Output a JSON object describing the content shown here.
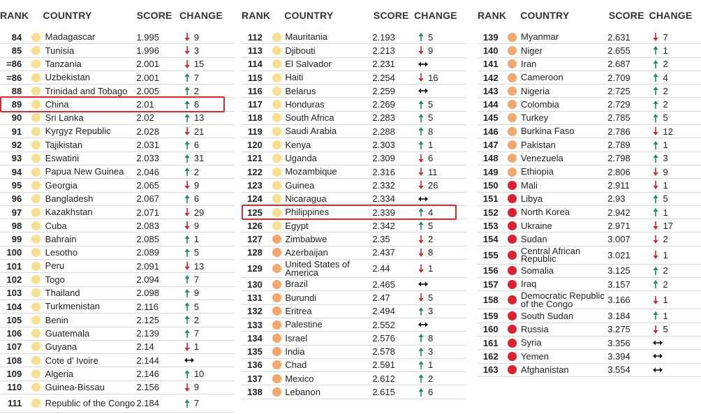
{
  "columns": [
    {
      "header": {
        "rank": "RANK",
        "country": "COUNTRY",
        "score": "SCORE",
        "change": "CHANGE"
      },
      "rows": [
        {
          "rank": "84",
          "country": "Madagascar",
          "score": "1.995",
          "change": 9,
          "dir": "down",
          "dot": "#f8df8e"
        },
        {
          "rank": "85",
          "country": "Tunisia",
          "score": "1.996",
          "change": 3,
          "dir": "down",
          "dot": "#f8df8e"
        },
        {
          "rank": "=86",
          "country": "Tanzania",
          "score": "2.001",
          "change": 15,
          "dir": "down",
          "dot": "#f8df8e"
        },
        {
          "rank": "=86",
          "country": "Uzbekistan",
          "score": "2.001",
          "change": 7,
          "dir": "up",
          "dot": "#f8df8e"
        },
        {
          "rank": "88",
          "country": "Trinidad and Tobago",
          "score": "2.005",
          "change": 2,
          "dir": "up",
          "dot": "#f8df8e"
        },
        {
          "rank": "89",
          "country": "China",
          "score": "2.01",
          "change": 6,
          "dir": "up",
          "dot": "#f8df8e",
          "highlight": true
        },
        {
          "rank": "90",
          "country": "Sri Lanka",
          "score": "2.02",
          "change": 13,
          "dir": "up",
          "dot": "#f8df8e"
        },
        {
          "rank": "91",
          "country": "Kyrgyz Republic",
          "score": "2.028",
          "change": 21,
          "dir": "down",
          "dot": "#f8df8e"
        },
        {
          "rank": "92",
          "country": "Tajikistan",
          "score": "2.031",
          "change": 6,
          "dir": "up",
          "dot": "#f8df8e"
        },
        {
          "rank": "93",
          "country": "Eswatini",
          "score": "2.033",
          "change": 31,
          "dir": "up",
          "dot": "#f8df8e"
        },
        {
          "rank": "94",
          "country": "Papua New Guinea",
          "score": "2.046",
          "change": 2,
          "dir": "up",
          "dot": "#f8df8e"
        },
        {
          "rank": "95",
          "country": "Georgia",
          "score": "2.065",
          "change": 9,
          "dir": "down",
          "dot": "#f8df8e"
        },
        {
          "rank": "96",
          "country": "Bangladesh",
          "score": "2.067",
          "change": 6,
          "dir": "up",
          "dot": "#f8df8e"
        },
        {
          "rank": "97",
          "country": "Kazakhstan",
          "score": "2.071",
          "change": 29,
          "dir": "down",
          "dot": "#f8df8e"
        },
        {
          "rank": "98",
          "country": "Cuba",
          "score": "2.083",
          "change": 9,
          "dir": "down",
          "dot": "#f8df8e"
        },
        {
          "rank": "99",
          "country": "Bahrain",
          "score": "2.085",
          "change": 1,
          "dir": "up",
          "dot": "#f8df8e"
        },
        {
          "rank": "100",
          "country": "Lesotho",
          "score": "2.089",
          "change": 5,
          "dir": "up",
          "dot": "#f8df8e"
        },
        {
          "rank": "101",
          "country": "Peru",
          "score": "2.091",
          "change": 13,
          "dir": "down",
          "dot": "#f8df8e"
        },
        {
          "rank": "102",
          "country": "Togo",
          "score": "2.094",
          "change": 7,
          "dir": "up",
          "dot": "#f8df8e"
        },
        {
          "rank": "103",
          "country": "Thailand",
          "score": "2.098",
          "change": 9,
          "dir": "up",
          "dot": "#f8df8e"
        },
        {
          "rank": "104",
          "country": "Turkmenistan",
          "score": "2.116",
          "change": 5,
          "dir": "up",
          "dot": "#f8df8e"
        },
        {
          "rank": "105",
          "country": "Benin",
          "score": "2.125",
          "change": 2,
          "dir": "up",
          "dot": "#f8df8e"
        },
        {
          "rank": "106",
          "country": "Guatemala",
          "score": "2.139",
          "change": 7,
          "dir": "up",
          "dot": "#f8df8e"
        },
        {
          "rank": "107",
          "country": "Guyana",
          "score": "2.14",
          "change": 1,
          "dir": "down",
          "dot": "#f8df8e"
        },
        {
          "rank": "108",
          "country": "Cote d' Ivoire",
          "score": "2.144",
          "change": null,
          "dir": "same",
          "dot": "#f8df8e"
        },
        {
          "rank": "109",
          "country": "Algeria",
          "score": "2.146",
          "change": 10,
          "dir": "up",
          "dot": "#f8df8e"
        },
        {
          "rank": "110",
          "country": "Guinea-Bissau",
          "score": "2.156",
          "change": 9,
          "dir": "down",
          "dot": "#f8df8e"
        },
        {
          "rank": "111",
          "country": "Republic of the Congo",
          "score": "2.184",
          "change": 7,
          "dir": "up",
          "dot": "#f8df8e"
        }
      ]
    },
    {
      "header": {
        "rank": "RANK",
        "country": "COUNTRY",
        "score": "SCORE",
        "change": "CHANGE"
      },
      "rows": [
        {
          "rank": "112",
          "country": "Mauritania",
          "score": "2.193",
          "change": 5,
          "dir": "up",
          "dot": "#f8df8e"
        },
        {
          "rank": "113",
          "country": "Djibouti",
          "score": "2.213",
          "change": 9,
          "dir": "down",
          "dot": "#f8df8e"
        },
        {
          "rank": "114",
          "country": "El Salvador",
          "score": "2.231",
          "change": null,
          "dir": "same",
          "dot": "#f8df8e"
        },
        {
          "rank": "115",
          "country": "Haiti",
          "score": "2.254",
          "change": 16,
          "dir": "down",
          "dot": "#f8df8e"
        },
        {
          "rank": "116",
          "country": "Belarus",
          "score": "2.259",
          "change": null,
          "dir": "same",
          "dot": "#f8df8e"
        },
        {
          "rank": "117",
          "country": "Honduras",
          "score": "2.269",
          "change": 5,
          "dir": "up",
          "dot": "#f8df8e"
        },
        {
          "rank": "118",
          "country": "South Africa",
          "score": "2.283",
          "change": 5,
          "dir": "up",
          "dot": "#f8df8e"
        },
        {
          "rank": "119",
          "country": "Saudi Arabia",
          "score": "2.288",
          "change": 8,
          "dir": "up",
          "dot": "#f8df8e"
        },
        {
          "rank": "120",
          "country": "Kenya",
          "score": "2.303",
          "change": 1,
          "dir": "up",
          "dot": "#f8df8e"
        },
        {
          "rank": "121",
          "country": "Uganda",
          "score": "2.309",
          "change": 6,
          "dir": "down",
          "dot": "#f8df8e"
        },
        {
          "rank": "122",
          "country": "Mozambique",
          "score": "2.316",
          "change": 11,
          "dir": "down",
          "dot": "#f8df8e"
        },
        {
          "rank": "123",
          "country": "Guinea",
          "score": "2.332",
          "change": 26,
          "dir": "down",
          "dot": "#f8df8e"
        },
        {
          "rank": "124",
          "country": "Nicaragua",
          "score": "2.334",
          "change": null,
          "dir": "same",
          "dot": "#f8df8e"
        },
        {
          "rank": "125",
          "country": "Philippines",
          "score": "2.339",
          "change": 4,
          "dir": "up",
          "dot": "#f8df8e",
          "highlight": true
        },
        {
          "rank": "126",
          "country": "Egypt",
          "score": "2.342",
          "change": 5,
          "dir": "up",
          "dot": "#f8df8e"
        },
        {
          "rank": "127",
          "country": "Zimbabwe",
          "score": "2.35",
          "change": 2,
          "dir": "down",
          "dot": "#f2a86c"
        },
        {
          "rank": "128",
          "country": "Azerbaijan",
          "score": "2.437",
          "change": 8,
          "dir": "down",
          "dot": "#f2a86c"
        },
        {
          "rank": "129",
          "country": "United States of America",
          "score": "2.44",
          "change": 1,
          "dir": "down",
          "dot": "#f2a86c"
        },
        {
          "rank": "130",
          "country": "Brazil",
          "score": "2.465",
          "change": null,
          "dir": "same",
          "dot": "#f2a86c"
        },
        {
          "rank": "131",
          "country": "Burundi",
          "score": "2.47",
          "change": 5,
          "dir": "down",
          "dot": "#f2a86c"
        },
        {
          "rank": "132",
          "country": "Eritrea",
          "score": "2.494",
          "change": 3,
          "dir": "up",
          "dot": "#f2a86c"
        },
        {
          "rank": "133",
          "country": "Palestine",
          "score": "2.552",
          "change": null,
          "dir": "same",
          "dot": "#f2a86c"
        },
        {
          "rank": "134",
          "country": "Israel",
          "score": "2.576",
          "change": 8,
          "dir": "up",
          "dot": "#f2a86c"
        },
        {
          "rank": "135",
          "country": "India",
          "score": "2.578",
          "change": 3,
          "dir": "up",
          "dot": "#f2a86c"
        },
        {
          "rank": "136",
          "country": "Chad",
          "score": "2.591",
          "change": 1,
          "dir": "up",
          "dot": "#f2a86c"
        },
        {
          "rank": "137",
          "country": "Mexico",
          "score": "2.612",
          "change": 2,
          "dir": "up",
          "dot": "#f2a86c"
        },
        {
          "rank": "138",
          "country": "Lebanon",
          "score": "2.615",
          "change": 6,
          "dir": "up",
          "dot": "#f2a86c"
        }
      ]
    },
    {
      "header": {
        "rank": "RANK",
        "country": "COUNTRY",
        "score": "SCORE",
        "change": "CHANGE"
      },
      "rows": [
        {
          "rank": "139",
          "country": "Myanmar",
          "score": "2.631",
          "change": 7,
          "dir": "down",
          "dot": "#f2a86c"
        },
        {
          "rank": "140",
          "country": "Niger",
          "score": "2.655",
          "change": 1,
          "dir": "up",
          "dot": "#f2a86c"
        },
        {
          "rank": "141",
          "country": "Iran",
          "score": "2.687",
          "change": 2,
          "dir": "up",
          "dot": "#f2a86c"
        },
        {
          "rank": "142",
          "country": "Cameroon",
          "score": "2.709",
          "change": 4,
          "dir": "up",
          "dot": "#f2a86c"
        },
        {
          "rank": "143",
          "country": "Nigeria",
          "score": "2.725",
          "change": 2,
          "dir": "up",
          "dot": "#f2a86c"
        },
        {
          "rank": "144",
          "country": "Colombia",
          "score": "2.729",
          "change": 2,
          "dir": "up",
          "dot": "#f2a86c"
        },
        {
          "rank": "145",
          "country": "Turkey",
          "score": "2.785",
          "change": 5,
          "dir": "up",
          "dot": "#f2a86c"
        },
        {
          "rank": "146",
          "country": "Burkina Faso",
          "score": "2.786",
          "change": 12,
          "dir": "down",
          "dot": "#f2a86c"
        },
        {
          "rank": "147",
          "country": "Pakistan",
          "score": "2.789",
          "change": 1,
          "dir": "up",
          "dot": "#f2a86c"
        },
        {
          "rank": "148",
          "country": "Venezuela",
          "score": "2.798",
          "change": 3,
          "dir": "up",
          "dot": "#f2a86c"
        },
        {
          "rank": "149",
          "country": "Ethiopia",
          "score": "2.806",
          "change": 9,
          "dir": "down",
          "dot": "#f2a86c"
        },
        {
          "rank": "150",
          "country": "Mali",
          "score": "2.911",
          "change": 1,
          "dir": "down",
          "dot": "#e0202c"
        },
        {
          "rank": "151",
          "country": "Libya",
          "score": "2.93",
          "change": 5,
          "dir": "up",
          "dot": "#e0202c"
        },
        {
          "rank": "152",
          "country": "North Korea",
          "score": "2.942",
          "change": 1,
          "dir": "up",
          "dot": "#e0202c"
        },
        {
          "rank": "153",
          "country": "Ukraine",
          "score": "2.971",
          "change": 17,
          "dir": "down",
          "dot": "#e0202c"
        },
        {
          "rank": "154",
          "country": "Sudan",
          "score": "3.007",
          "change": 2,
          "dir": "down",
          "dot": "#e0202c"
        },
        {
          "rank": "155",
          "country": "Central African Republic",
          "score": "3.021",
          "change": 1,
          "dir": "down",
          "dot": "#e0202c"
        },
        {
          "rank": "156",
          "country": "Somalia",
          "score": "3.125",
          "change": 2,
          "dir": "up",
          "dot": "#e0202c"
        },
        {
          "rank": "157",
          "country": "Iraq",
          "score": "3.157",
          "change": 2,
          "dir": "up",
          "dot": "#e0202c"
        },
        {
          "rank": "158",
          "country": "Democratic Republic of the Congo",
          "score": "3.166",
          "change": 1,
          "dir": "down",
          "dot": "#e0202c"
        },
        {
          "rank": "159",
          "country": "South Sudan",
          "score": "3.184",
          "change": 1,
          "dir": "up",
          "dot": "#e0202c"
        },
        {
          "rank": "160",
          "country": "Russia",
          "score": "3.275",
          "change": 5,
          "dir": "down",
          "dot": "#e0202c"
        },
        {
          "rank": "161",
          "country": "Syria",
          "score": "3.356",
          "change": null,
          "dir": "same",
          "dot": "#e0202c"
        },
        {
          "rank": "162",
          "country": "Yemen",
          "score": "3.394",
          "change": null,
          "dir": "same",
          "dot": "#e0202c"
        },
        {
          "rank": "163",
          "country": "Afghanistan",
          "score": "3.554",
          "change": null,
          "dir": "same",
          "dot": "#e0202c"
        }
      ]
    }
  ]
}
